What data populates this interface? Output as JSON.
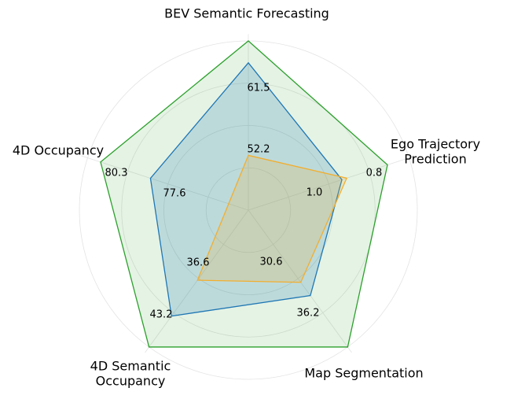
{
  "chart_data": {
    "type": "radar",
    "axes": [
      {
        "label": [
          "BEV Semantic Forecasting"
        ],
        "rlim": [
          46.7,
          63.7
        ]
      },
      {
        "label": [
          "Ego Trajectory",
          "Prediction"
        ],
        "rlim": [
          4.9,
          -1.8
        ]
      },
      {
        "label": [
          "Map Segmentation"
        ],
        "rlim": [
          0,
          58
        ]
      },
      {
        "label": [
          "4D Semantic",
          "Occupancy"
        ],
        "rlim": [
          23.7,
          48.9
        ]
      },
      {
        "label": [
          "4D Occupancy"
        ],
        "rlim": [
          72.3,
          81
        ]
      }
    ],
    "series": [
      {
        "color": "#2ca02c",
        "values": [
          63.7,
          -0.9,
          58,
          48.9,
          80.3
        ]
      },
      {
        "color": "#1f77b4",
        "values": [
          61.5,
          1.0,
          36.2,
          43.2,
          77.6
        ],
        "value_labels": [
          "61.5",
          "1.0",
          "36.2",
          "43.2",
          "77.6"
        ]
      },
      {
        "color": "#f2ae2e",
        "values": [
          52.2,
          0.8,
          30.6,
          36.6,
          null
        ]
      }
    ]
  }
}
